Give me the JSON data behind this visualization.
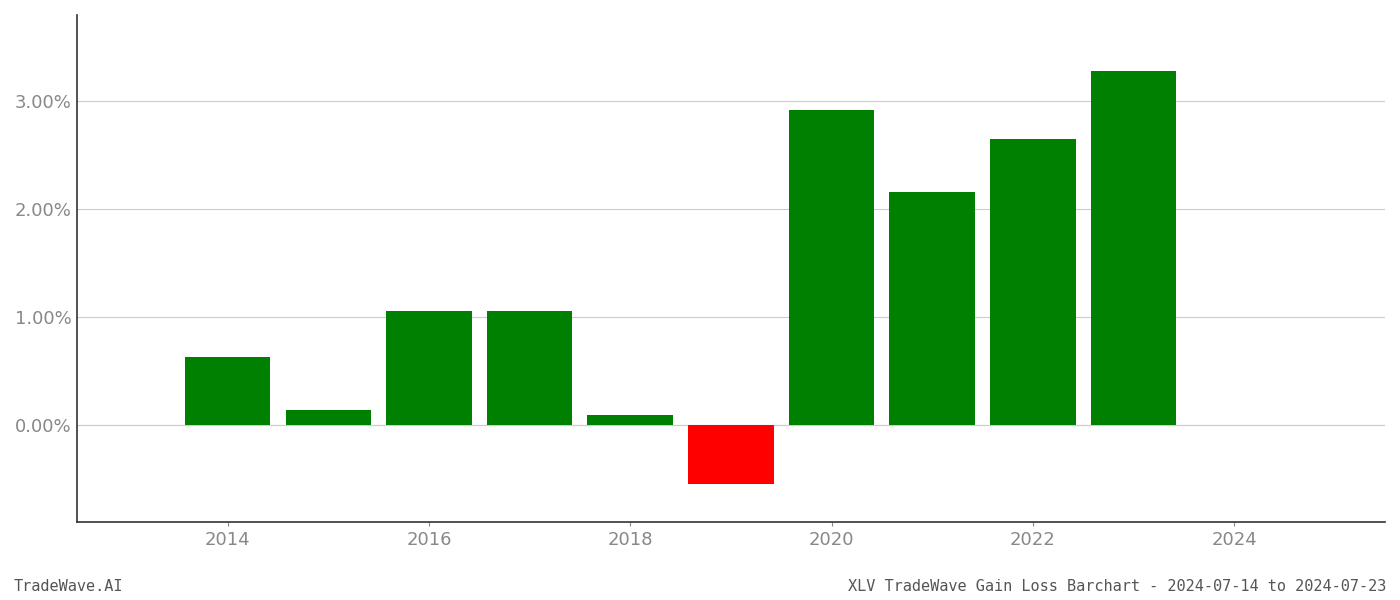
{
  "years": [
    2014,
    2015,
    2016,
    2017,
    2018,
    2019,
    2020,
    2021,
    2022,
    2023
  ],
  "values": [
    0.0063,
    0.0014,
    0.0106,
    0.0106,
    0.0009,
    -0.0055,
    0.0292,
    0.0216,
    0.0265,
    0.0328
  ],
  "colors": [
    "#008000",
    "#008000",
    "#008000",
    "#008000",
    "#008000",
    "#ff0000",
    "#008000",
    "#008000",
    "#008000",
    "#008000"
  ],
  "xlim": [
    2012.5,
    2025.5
  ],
  "ylim": [
    -0.009,
    0.038
  ],
  "yticks": [
    0.0,
    0.01,
    0.02,
    0.03
  ],
  "xtick_labels": [
    "2014",
    "2016",
    "2018",
    "2020",
    "2022",
    "2024"
  ],
  "xtick_positions": [
    2014,
    2016,
    2018,
    2020,
    2022,
    2024
  ],
  "bar_width": 0.85,
  "title": "XLV TradeWave Gain Loss Barchart - 2024-07-14 to 2024-07-23",
  "watermark": "TradeWave.AI",
  "grid_color": "#cccccc",
  "background_color": "#ffffff",
  "title_fontsize": 11,
  "watermark_fontsize": 11,
  "tick_label_color": "#888888",
  "spine_color": "#333333",
  "axis_linewidth": 1.2
}
